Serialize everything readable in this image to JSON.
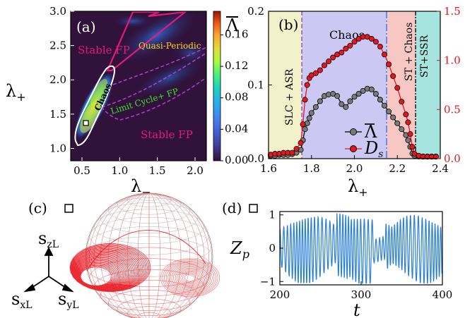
{
  "chart_data": [
    {
      "panel": "(a)",
      "type": "heatmap",
      "xlabel": "λ₋",
      "ylabel": "λ₊",
      "xlim": [
        0.35,
        2.15
      ],
      "ylim": [
        0.82,
        3.0
      ],
      "xticks": [
        "0.5",
        "1.0",
        "1.5",
        "2.0"
      ],
      "yticks": [
        "1.0",
        "1.5",
        "2.0",
        "2.5",
        "3.0"
      ],
      "colorbar": {
        "label": "Λ̄",
        "range": [
          0.0,
          0.19
        ],
        "ticks": [
          "0.00",
          "0.04",
          "0.08",
          "0.12",
          "0.16"
        ],
        "colormap": "turbo"
      },
      "regions": [
        "Stable  FP",
        "Quasi-Periodic",
        "Chaos",
        "Limit Cycle+ FP",
        "Stable  FP"
      ],
      "region_colors": {
        "quasi": "#e3197a",
        "limit": "#b040d0",
        "chaos": "#ffffff",
        "text_fp": "#e3197a",
        "text_qp": "#ffd21e",
        "text_lc": "#3ee02a"
      }
    },
    {
      "panel": "(b)",
      "type": "line",
      "xlabel": "λ₊",
      "xlim": [
        1.6,
        2.4
      ],
      "ylim_left": [
        0,
        0.2
      ],
      "ylim_right": [
        0,
        1.5
      ],
      "xticks": [
        "1.6",
        "1.8",
        "2.0",
        "2.2",
        "2.4"
      ],
      "yticks_left": [
        "0.0",
        "0.1",
        "0.2"
      ],
      "yticks_right": [
        "0.0",
        "0.5",
        "1.0",
        "1.5"
      ],
      "bands": [
        {
          "label": "SLC + ASR",
          "x0": 1.6,
          "x1": 1.755,
          "color": "#f2f1c9"
        },
        {
          "label": "Chaos",
          "x0": 1.755,
          "x1": 2.15,
          "color": "#ccc8f4"
        },
        {
          "label": "ST + Chaos",
          "x0": 2.15,
          "x1": 2.285,
          "color": "#f7c7c4"
        },
        {
          "label": "ST+SSR",
          "x0": 2.285,
          "x1": 2.4,
          "color": "#a6e5df"
        }
      ],
      "series": [
        {
          "name": "Λ̄",
          "axis": "left",
          "color": "#555555",
          "x": [
            1.61,
            1.63,
            1.65,
            1.67,
            1.69,
            1.71,
            1.73,
            1.75,
            1.76,
            1.77,
            1.78,
            1.79,
            1.8,
            1.82,
            1.84,
            1.86,
            1.88,
            1.9,
            1.92,
            1.94,
            1.96,
            1.98,
            2.0,
            2.02,
            2.04,
            2.06,
            2.08,
            2.1,
            2.12,
            2.14,
            2.16,
            2.18,
            2.2,
            2.22,
            2.24,
            2.25,
            2.26,
            2.27,
            2.28,
            2.3,
            2.32,
            2.34,
            2.36,
            2.38
          ],
          "y": [
            0.004,
            0.004,
            0.005,
            0.005,
            0.005,
            0.006,
            0.008,
            0.012,
            0.025,
            0.04,
            0.048,
            0.055,
            0.062,
            0.07,
            0.078,
            0.085,
            0.087,
            0.088,
            0.085,
            0.074,
            0.07,
            0.078,
            0.084,
            0.088,
            0.092,
            0.095,
            0.094,
            0.088,
            0.08,
            0.072,
            0.064,
            0.056,
            0.048,
            0.04,
            0.032,
            0.025,
            0.016,
            0.007,
            0.004,
            0.003,
            0.003,
            0.003,
            0.003,
            0.003
          ]
        },
        {
          "name": "D_s",
          "axis": "right",
          "color": "#e8141e",
          "x": [
            1.61,
            1.63,
            1.65,
            1.67,
            1.69,
            1.71,
            1.73,
            1.75,
            1.76,
            1.77,
            1.78,
            1.79,
            1.8,
            1.82,
            1.84,
            1.86,
            1.88,
            1.9,
            1.92,
            1.94,
            1.96,
            1.98,
            2.0,
            2.02,
            2.04,
            2.06,
            2.08,
            2.1,
            2.12,
            2.14,
            2.16,
            2.18,
            2.2,
            2.22,
            2.24,
            2.25,
            2.26,
            2.27,
            2.28,
            2.3,
            2.32,
            2.34,
            2.36,
            2.38
          ],
          "y": [
            0.04,
            0.05,
            0.05,
            0.06,
            0.06,
            0.06,
            0.1,
            0.16,
            0.35,
            0.6,
            0.75,
            0.82,
            0.85,
            0.87,
            0.9,
            0.95,
            0.99,
            1.03,
            1.06,
            1.08,
            1.12,
            1.15,
            1.19,
            1.22,
            1.24,
            1.24,
            1.22,
            1.19,
            1.14,
            1.06,
            0.96,
            0.84,
            0.72,
            0.58,
            0.45,
            0.37,
            0.25,
            0.12,
            0.05,
            0.03,
            0.02,
            0.02,
            0.02,
            0.02
          ]
        }
      ]
    },
    {
      "panel": "(c)",
      "type": "other",
      "axis_labels": [
        "s_zL",
        "s_xL",
        "s_yL"
      ]
    },
    {
      "panel": "(d)",
      "type": "line",
      "xlabel": "t",
      "ylabel": "Z_p",
      "xlim": [
        200,
        400
      ],
      "ylim": [
        -1.1,
        1.1
      ],
      "xticks": [
        "200",
        "300",
        "400"
      ],
      "yticks": [
        "1",
        "0",
        "−1"
      ],
      "series_color": "#2a7fd4"
    }
  ],
  "labels": {
    "a": "(a)",
    "b": "(b)",
    "c": "(c)",
    "d": "(d)",
    "stable_fp_top": "Stable  FP",
    "stable_fp_bottom": "Stable  FP",
    "quasi": "Quasi-Periodic",
    "chaos_a": "Chaos",
    "limit_cycle": "Limit Cycle+ FP",
    "cb_label": "Λ",
    "b_band1": "SLC + ASR",
    "b_band2": "Chaos",
    "b_band3": "ST + Chaos",
    "b_band4": "ST+SSR",
    "legend_lambda": "Λ",
    "legend_ds": "D",
    "legend_ds_sub": "s",
    "xlab_a": "λ",
    "xlab_a_sub": "−",
    "ylab_a": "λ",
    "ylab_a_sub": "+",
    "xlab_b": "λ",
    "xlab_b_sub": "+",
    "ylab_d": "Z",
    "ylab_d_sub": "p",
    "xlab_d": "t",
    "szl": "s",
    "szl_sub": "zL",
    "sxl": "s",
    "sxl_sub": "xL",
    "syl": "s",
    "syl_sub": "yL"
  }
}
